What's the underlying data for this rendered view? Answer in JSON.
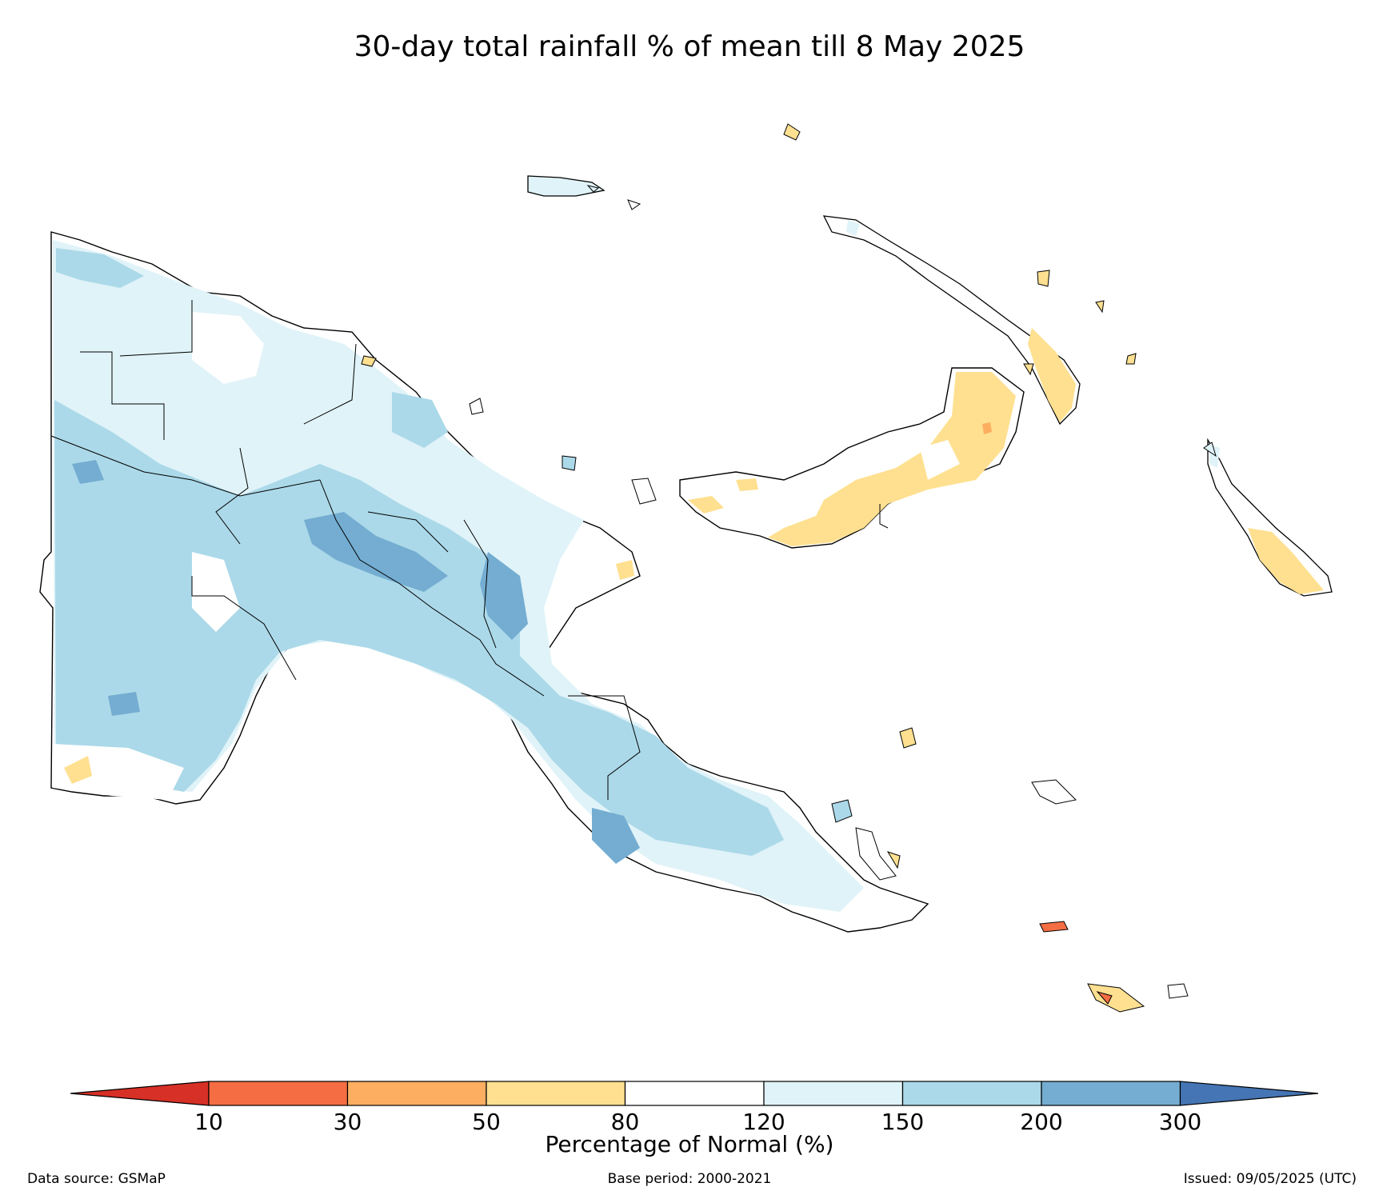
{
  "title": "30-day total rainfall % of mean till 8 May 2025",
  "colorbar": {
    "label": "Percentage of Normal (%)",
    "ticks": [
      "10",
      "30",
      "50",
      "80",
      "120",
      "150",
      "200",
      "300"
    ],
    "colors": {
      "under_10": "#d73027",
      "10_30": "#f46d43",
      "30_50": "#fdae61",
      "50_80": "#fee090",
      "80_120": "#ffffff",
      "120_150": "#e0f3f8",
      "150_200": "#abd9e9",
      "200_300": "#74add1",
      "over_300": "#4575b4"
    }
  },
  "footer": {
    "source": "Data source: GSMaP",
    "base_period": "Base period: 2000-2021",
    "issued": "Issued: 09/05/2025 (UTC)"
  }
}
